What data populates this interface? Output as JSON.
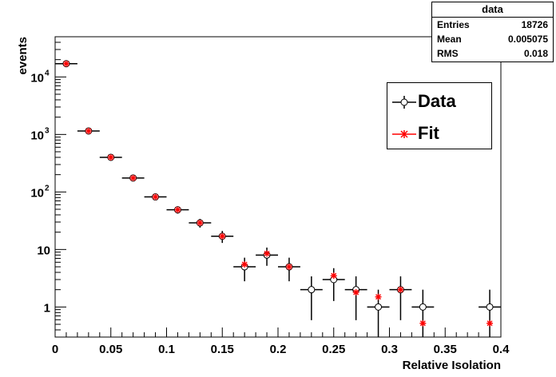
{
  "chart_data": {
    "type": "scatter",
    "xlabel": "Relative Isolation",
    "ylabel": "events",
    "xlim": [
      0,
      0.4
    ],
    "ylim": [
      0.3,
      50000
    ],
    "yscale": "log",
    "x_ticks": [
      "0",
      "0.05",
      "0.1",
      "0.15",
      "0.2",
      "0.25",
      "0.3",
      "0.35",
      "0.4"
    ],
    "y_ticks": [
      {
        "value": 1,
        "label": "1"
      },
      {
        "value": 10,
        "label": "10"
      },
      {
        "value": 100,
        "label": "10",
        "sup": "2"
      },
      {
        "value": 1000,
        "label": "10",
        "sup": "3"
      },
      {
        "value": 10000,
        "label": "10",
        "sup": "4"
      }
    ],
    "legend_placement": "top-right",
    "series": [
      {
        "name": "Data",
        "color": "#000000",
        "marker": "open-circle",
        "points": [
          {
            "x": 0.01,
            "y": 17000,
            "xerr": 0.01,
            "lo": 16870,
            "hi": 17130
          },
          {
            "x": 0.03,
            "y": 1150,
            "xerr": 0.01,
            "lo": 1116,
            "hi": 1184
          },
          {
            "x": 0.05,
            "y": 400,
            "xerr": 0.01,
            "lo": 380,
            "hi": 420
          },
          {
            "x": 0.07,
            "y": 175,
            "xerr": 0.01,
            "lo": 162,
            "hi": 188
          },
          {
            "x": 0.09,
            "y": 82,
            "xerr": 0.01,
            "lo": 73,
            "hi": 91
          },
          {
            "x": 0.11,
            "y": 49,
            "xerr": 0.01,
            "lo": 42,
            "hi": 56
          },
          {
            "x": 0.13,
            "y": 29,
            "xerr": 0.01,
            "lo": 24,
            "hi": 34
          },
          {
            "x": 0.15,
            "y": 17,
            "xerr": 0.01,
            "lo": 13,
            "hi": 21
          },
          {
            "x": 0.17,
            "y": 5,
            "xerr": 0.01,
            "lo": 2.8,
            "hi": 7.2
          },
          {
            "x": 0.19,
            "y": 8,
            "xerr": 0.01,
            "lo": 5.2,
            "hi": 10.8
          },
          {
            "x": 0.21,
            "y": 5,
            "xerr": 0.01,
            "lo": 2.8,
            "hi": 7.2
          },
          {
            "x": 0.23,
            "y": 2,
            "xerr": 0.01,
            "lo": 0.59,
            "hi": 3.41
          },
          {
            "x": 0.25,
            "y": 3,
            "xerr": 0.01,
            "lo": 1.27,
            "hi": 4.73
          },
          {
            "x": 0.27,
            "y": 2,
            "xerr": 0.01,
            "lo": 0.59,
            "hi": 3.41
          },
          {
            "x": 0.29,
            "y": 1,
            "xerr": 0.01,
            "lo": 0.3,
            "hi": 2.0
          },
          {
            "x": 0.31,
            "y": 2,
            "xerr": 0.01,
            "lo": 0.59,
            "hi": 3.41
          },
          {
            "x": 0.33,
            "y": 1,
            "xerr": 0.01,
            "lo": 0.3,
            "hi": 2.0
          },
          {
            "x": 0.39,
            "y": 1,
            "xerr": 0.01,
            "lo": 0.3,
            "hi": 2.0
          }
        ]
      },
      {
        "name": "Fit",
        "color": "#ff0000",
        "marker": "star",
        "points": [
          {
            "x": 0.01,
            "y": 17000
          },
          {
            "x": 0.03,
            "y": 1150
          },
          {
            "x": 0.05,
            "y": 400
          },
          {
            "x": 0.07,
            "y": 175
          },
          {
            "x": 0.09,
            "y": 82
          },
          {
            "x": 0.11,
            "y": 49
          },
          {
            "x": 0.13,
            "y": 29
          },
          {
            "x": 0.15,
            "y": 17
          },
          {
            "x": 0.17,
            "y": 5.5
          },
          {
            "x": 0.19,
            "y": 8.5
          },
          {
            "x": 0.21,
            "y": 5
          },
          {
            "x": 0.25,
            "y": 3.5
          },
          {
            "x": 0.27,
            "y": 1.8
          },
          {
            "x": 0.29,
            "y": 1.5
          },
          {
            "x": 0.31,
            "y": 2
          },
          {
            "x": 0.33,
            "y": 0.52
          },
          {
            "x": 0.39,
            "y": 0.52
          }
        ]
      }
    ]
  },
  "stats": {
    "title": "data",
    "rows": [
      {
        "label": "Entries",
        "value": "18726"
      },
      {
        "label": "Mean",
        "value": "0.005075"
      },
      {
        "label": "RMS",
        "value": "0.018"
      }
    ]
  }
}
